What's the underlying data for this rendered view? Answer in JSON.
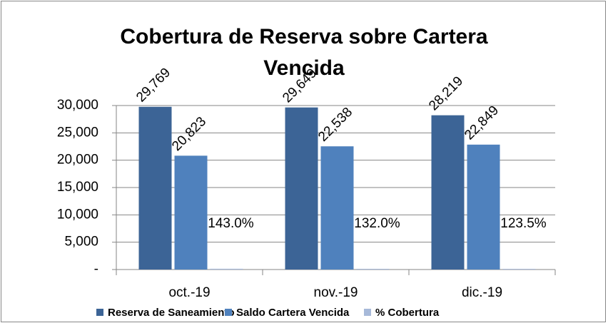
{
  "chart_data": {
    "type": "bar",
    "title": "Cobertura de Reserva sobre Cartera Vencida",
    "categories": [
      "oct.-19",
      "nov.-19",
      "dic.-19"
    ],
    "series": [
      {
        "name": "Reserva de Saneamiento",
        "color": "#3c6496",
        "values": [
          29769,
          29649,
          28219
        ],
        "value_labels": [
          "29,769",
          "29,649",
          "28,219"
        ]
      },
      {
        "name": "Saldo Cartera Vencida",
        "color": "#4f81bd",
        "values": [
          20823,
          22538,
          22849
        ],
        "value_labels": [
          "20,823",
          "22,538",
          "22,849"
        ]
      },
      {
        "name": "% Cobertura",
        "color": "#a7b9d9",
        "values": [
          143.0,
          132.0,
          123.5
        ],
        "value_labels": [
          "143.0%",
          "132.0%",
          "123.5%"
        ]
      }
    ],
    "ylim": [
      0,
      30000
    ],
    "yticks": [
      {
        "value": 0,
        "label": "-"
      },
      {
        "value": 5000,
        "label": "5,000"
      },
      {
        "value": 10000,
        "label": "10,000"
      },
      {
        "value": 15000,
        "label": "15,000"
      },
      {
        "value": 20000,
        "label": "20,000"
      },
      {
        "value": 25000,
        "label": "25,000"
      },
      {
        "value": 30000,
        "label": "30,000"
      }
    ],
    "grid": true,
    "legend": "bottom"
  }
}
